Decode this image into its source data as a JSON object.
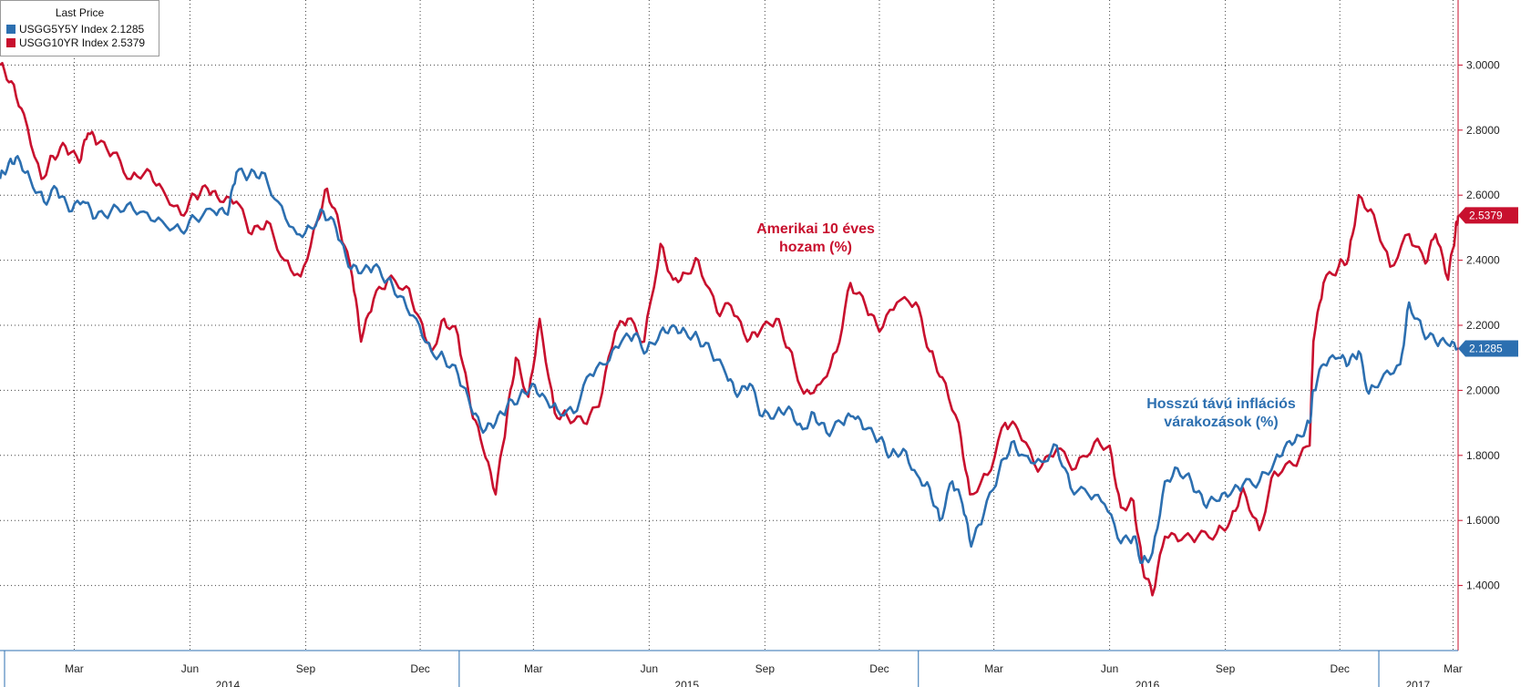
{
  "chart_data": {
    "type": "line",
    "legend": {
      "title": "Last Price",
      "placement": "top-left",
      "entries": [
        "USGG5Y5Y Index 2.1285",
        "USGG10YR Index 2.5379"
      ]
    },
    "ylim": [
      1.2,
      3.2
    ],
    "yticks": [
      "1.4000",
      "1.6000",
      "1.8000",
      "2.0000",
      "2.2000",
      "2.4000",
      "2.6000",
      "2.8000",
      "3.0000"
    ],
    "grid": true,
    "x_month_ticks": [
      {
        "label": "Mar",
        "date": "2014-03-01"
      },
      {
        "label": "Jun",
        "date": "2014-06-01"
      },
      {
        "label": "Sep",
        "date": "2014-09-01"
      },
      {
        "label": "Dec",
        "date": "2014-12-01"
      },
      {
        "label": "Mar",
        "date": "2015-03-01"
      },
      {
        "label": "Jun",
        "date": "2015-06-01"
      },
      {
        "label": "Sep",
        "date": "2015-09-01"
      },
      {
        "label": "Dec",
        "date": "2015-12-01"
      },
      {
        "label": "Mar",
        "date": "2016-03-01"
      },
      {
        "label": "Jun",
        "date": "2016-06-01"
      },
      {
        "label": "Sep",
        "date": "2016-09-01"
      },
      {
        "label": "Dec",
        "date": "2016-12-01"
      },
      {
        "label": "Mar",
        "date": "2017-03-01"
      }
    ],
    "x_year_labels": [
      {
        "label": "2014",
        "date": "2014-07-01"
      },
      {
        "label": "2015",
        "date": "2015-07-01"
      },
      {
        "label": "2016",
        "date": "2016-07-01"
      },
      {
        "label": "2017",
        "date": "2017-02-01"
      }
    ],
    "year_boundaries": [
      "2015-01-01",
      "2016-01-01",
      "2017-01-01"
    ],
    "xlim": [
      "2014-01-01",
      "2017-03-05"
    ],
    "series": [
      {
        "name": "USGG10YR Index",
        "color": "#c8102e",
        "last_value_label": "2.5379",
        "points": [
          [
            "2014-01-01",
            3.0
          ],
          [
            "2014-01-10",
            2.95
          ],
          [
            "2014-01-20",
            2.85
          ],
          [
            "2014-02-03",
            2.65
          ],
          [
            "2014-02-12",
            2.72
          ],
          [
            "2014-02-22",
            2.75
          ],
          [
            "2014-03-05",
            2.7
          ],
          [
            "2014-03-12",
            2.79
          ],
          [
            "2014-03-20",
            2.76
          ],
          [
            "2014-04-01",
            2.73
          ],
          [
            "2014-04-15",
            2.65
          ],
          [
            "2014-04-28",
            2.68
          ],
          [
            "2014-05-10",
            2.62
          ],
          [
            "2014-05-25",
            2.54
          ],
          [
            "2014-06-05",
            2.6
          ],
          [
            "2014-06-15",
            2.62
          ],
          [
            "2014-06-25",
            2.58
          ],
          [
            "2014-07-08",
            2.58
          ],
          [
            "2014-07-20",
            2.48
          ],
          [
            "2014-08-01",
            2.52
          ],
          [
            "2014-08-15",
            2.4
          ],
          [
            "2014-08-28",
            2.35
          ],
          [
            "2014-09-10",
            2.52
          ],
          [
            "2014-09-18",
            2.62
          ],
          [
            "2014-09-28",
            2.5
          ],
          [
            "2014-10-08",
            2.35
          ],
          [
            "2014-10-15",
            2.15
          ],
          [
            "2014-10-25",
            2.28
          ],
          [
            "2014-11-05",
            2.34
          ],
          [
            "2014-11-20",
            2.32
          ],
          [
            "2014-12-01",
            2.22
          ],
          [
            "2014-12-10",
            2.12
          ],
          [
            "2014-12-20",
            2.22
          ],
          [
            "2014-12-31",
            2.17
          ],
          [
            "2015-01-10",
            1.95
          ],
          [
            "2015-01-20",
            1.82
          ],
          [
            "2015-01-30",
            1.68
          ],
          [
            "2015-02-08",
            1.92
          ],
          [
            "2015-02-15",
            2.1
          ],
          [
            "2015-02-25",
            1.98
          ],
          [
            "2015-03-06",
            2.22
          ],
          [
            "2015-03-18",
            1.93
          ],
          [
            "2015-03-28",
            1.92
          ],
          [
            "2015-04-10",
            1.9
          ],
          [
            "2015-04-22",
            1.95
          ],
          [
            "2015-05-05",
            2.18
          ],
          [
            "2015-05-15",
            2.22
          ],
          [
            "2015-05-28",
            2.15
          ],
          [
            "2015-06-10",
            2.45
          ],
          [
            "2015-06-20",
            2.34
          ],
          [
            "2015-06-30",
            2.36
          ],
          [
            "2015-07-10",
            2.4
          ],
          [
            "2015-07-25",
            2.24
          ],
          [
            "2015-08-05",
            2.26
          ],
          [
            "2015-08-18",
            2.15
          ],
          [
            "2015-08-28",
            2.18
          ],
          [
            "2015-09-10",
            2.22
          ],
          [
            "2015-09-20",
            2.13
          ],
          [
            "2015-10-02",
            1.99
          ],
          [
            "2015-10-15",
            2.02
          ],
          [
            "2015-10-28",
            2.12
          ],
          [
            "2015-11-08",
            2.33
          ],
          [
            "2015-11-20",
            2.26
          ],
          [
            "2015-12-01",
            2.18
          ],
          [
            "2015-12-15",
            2.27
          ],
          [
            "2015-12-30",
            2.27
          ],
          [
            "2016-01-10",
            2.12
          ],
          [
            "2016-01-20",
            2.04
          ],
          [
            "2016-02-02",
            1.9
          ],
          [
            "2016-02-11",
            1.68
          ],
          [
            "2016-02-25",
            1.74
          ],
          [
            "2016-03-10",
            1.9
          ],
          [
            "2016-03-20",
            1.88
          ],
          [
            "2016-04-05",
            1.75
          ],
          [
            "2016-04-20",
            1.82
          ],
          [
            "2016-05-05",
            1.76
          ],
          [
            "2016-05-20",
            1.84
          ],
          [
            "2016-06-01",
            1.83
          ],
          [
            "2016-06-10",
            1.64
          ],
          [
            "2016-06-20",
            1.66
          ],
          [
            "2016-06-27",
            1.46
          ],
          [
            "2016-07-05",
            1.37
          ],
          [
            "2016-07-15",
            1.55
          ],
          [
            "2016-07-28",
            1.54
          ],
          [
            "2016-08-10",
            1.55
          ],
          [
            "2016-08-25",
            1.56
          ],
          [
            "2016-09-05",
            1.6
          ],
          [
            "2016-09-15",
            1.7
          ],
          [
            "2016-09-28",
            1.57
          ],
          [
            "2016-10-10",
            1.75
          ],
          [
            "2016-10-25",
            1.77
          ],
          [
            "2016-11-07",
            1.83
          ],
          [
            "2016-11-10",
            2.15
          ],
          [
            "2016-11-18",
            2.33
          ],
          [
            "2016-11-30",
            2.38
          ],
          [
            "2016-12-08",
            2.41
          ],
          [
            "2016-12-16",
            2.6
          ],
          [
            "2016-12-28",
            2.54
          ],
          [
            "2017-01-10",
            2.38
          ],
          [
            "2017-01-25",
            2.48
          ],
          [
            "2017-02-07",
            2.39
          ],
          [
            "2017-02-15",
            2.48
          ],
          [
            "2017-02-25",
            2.34
          ],
          [
            "2017-03-03",
            2.49
          ],
          [
            "2017-03-05",
            2.5379
          ]
        ]
      },
      {
        "name": "USGG5Y5Y Index",
        "color": "#2c6fb0",
        "last_value_label": "2.1285",
        "points": [
          [
            "2014-01-01",
            2.65
          ],
          [
            "2014-01-08",
            2.7
          ],
          [
            "2014-01-15",
            2.72
          ],
          [
            "2014-01-25",
            2.65
          ],
          [
            "2014-02-05",
            2.58
          ],
          [
            "2014-02-15",
            2.62
          ],
          [
            "2014-02-25",
            2.55
          ],
          [
            "2014-03-08",
            2.58
          ],
          [
            "2014-03-18",
            2.53
          ],
          [
            "2014-03-30",
            2.55
          ],
          [
            "2014-04-12",
            2.57
          ],
          [
            "2014-04-25",
            2.55
          ],
          [
            "2014-05-10",
            2.52
          ],
          [
            "2014-05-25",
            2.49
          ],
          [
            "2014-06-05",
            2.53
          ],
          [
            "2014-06-20",
            2.55
          ],
          [
            "2014-07-01",
            2.54
          ],
          [
            "2014-07-08",
            2.67
          ],
          [
            "2014-07-18",
            2.66
          ],
          [
            "2014-07-28",
            2.67
          ],
          [
            "2014-08-10",
            2.58
          ],
          [
            "2014-08-25",
            2.48
          ],
          [
            "2014-09-05",
            2.5
          ],
          [
            "2014-09-15",
            2.55
          ],
          [
            "2014-09-25",
            2.5
          ],
          [
            "2014-10-05",
            2.38
          ],
          [
            "2014-10-15",
            2.36
          ],
          [
            "2014-10-25",
            2.38
          ],
          [
            "2014-11-05",
            2.34
          ],
          [
            "2014-11-15",
            2.29
          ],
          [
            "2014-11-28",
            2.22
          ],
          [
            "2014-12-10",
            2.12
          ],
          [
            "2014-12-20",
            2.1
          ],
          [
            "2014-12-31",
            2.05
          ],
          [
            "2015-01-10",
            1.95
          ],
          [
            "2015-01-20",
            1.87
          ],
          [
            "2015-01-30",
            1.9
          ],
          [
            "2015-02-08",
            1.95
          ],
          [
            "2015-02-18",
            1.98
          ],
          [
            "2015-02-28",
            2.02
          ],
          [
            "2015-03-10",
            1.98
          ],
          [
            "2015-03-20",
            1.94
          ],
          [
            "2015-04-02",
            1.93
          ],
          [
            "2015-04-15",
            2.05
          ],
          [
            "2015-04-28",
            2.08
          ],
          [
            "2015-05-10",
            2.15
          ],
          [
            "2015-05-20",
            2.17
          ],
          [
            "2015-05-30",
            2.12
          ],
          [
            "2015-06-10",
            2.18
          ],
          [
            "2015-06-20",
            2.2
          ],
          [
            "2015-06-30",
            2.18
          ],
          [
            "2015-07-10",
            2.16
          ],
          [
            "2015-07-20",
            2.12
          ],
          [
            "2015-08-01",
            2.05
          ],
          [
            "2015-08-10",
            1.98
          ],
          [
            "2015-08-20",
            2.02
          ],
          [
            "2015-08-30",
            1.92
          ],
          [
            "2015-09-10",
            1.93
          ],
          [
            "2015-09-20",
            1.95
          ],
          [
            "2015-10-01",
            1.88
          ],
          [
            "2015-10-10",
            1.93
          ],
          [
            "2015-10-20",
            1.87
          ],
          [
            "2015-11-01",
            1.9
          ],
          [
            "2015-11-10",
            1.92
          ],
          [
            "2015-11-20",
            1.88
          ],
          [
            "2015-12-01",
            1.85
          ],
          [
            "2015-12-10",
            1.8
          ],
          [
            "2015-12-20",
            1.82
          ],
          [
            "2015-12-31",
            1.74
          ],
          [
            "2016-01-10",
            1.7
          ],
          [
            "2016-01-18",
            1.6
          ],
          [
            "2016-01-28",
            1.72
          ],
          [
            "2016-02-05",
            1.65
          ],
          [
            "2016-02-12",
            1.52
          ],
          [
            "2016-02-22",
            1.62
          ],
          [
            "2016-03-05",
            1.75
          ],
          [
            "2016-03-15",
            1.84
          ],
          [
            "2016-03-25",
            1.8
          ],
          [
            "2016-04-08",
            1.78
          ],
          [
            "2016-04-20",
            1.83
          ],
          [
            "2016-05-01",
            1.7
          ],
          [
            "2016-05-15",
            1.68
          ],
          [
            "2016-05-28",
            1.65
          ],
          [
            "2016-06-10",
            1.53
          ],
          [
            "2016-06-20",
            1.55
          ],
          [
            "2016-06-27",
            1.47
          ],
          [
            "2016-07-05",
            1.5
          ],
          [
            "2016-07-15",
            1.72
          ],
          [
            "2016-07-25",
            1.76
          ],
          [
            "2016-08-05",
            1.72
          ],
          [
            "2016-08-15",
            1.65
          ],
          [
            "2016-08-25",
            1.66
          ],
          [
            "2016-09-05",
            1.68
          ],
          [
            "2016-09-15",
            1.71
          ],
          [
            "2016-09-28",
            1.72
          ],
          [
            "2016-10-10",
            1.78
          ],
          [
            "2016-10-20",
            1.84
          ],
          [
            "2016-10-30",
            1.86
          ],
          [
            "2016-11-07",
            1.9
          ],
          [
            "2016-11-10",
            2.0
          ],
          [
            "2016-11-18",
            2.08
          ],
          [
            "2016-11-30",
            2.1
          ],
          [
            "2016-12-08",
            2.08
          ],
          [
            "2016-12-16",
            2.12
          ],
          [
            "2016-12-24",
            1.99
          ],
          [
            "2017-01-05",
            2.05
          ],
          [
            "2017-01-18",
            2.08
          ],
          [
            "2017-01-25",
            2.27
          ],
          [
            "2017-02-05",
            2.18
          ],
          [
            "2017-02-15",
            2.15
          ],
          [
            "2017-02-25",
            2.14
          ],
          [
            "2017-03-05",
            2.1285
          ]
        ]
      }
    ],
    "annotations": [
      {
        "text": "Amerikai 10 éves",
        "line2": "hozam (%)",
        "color": "#c8102e"
      },
      {
        "text": "Hosszú távú inflációs",
        "line2": "várakozások (%)",
        "color": "#2c6fb0"
      }
    ]
  }
}
